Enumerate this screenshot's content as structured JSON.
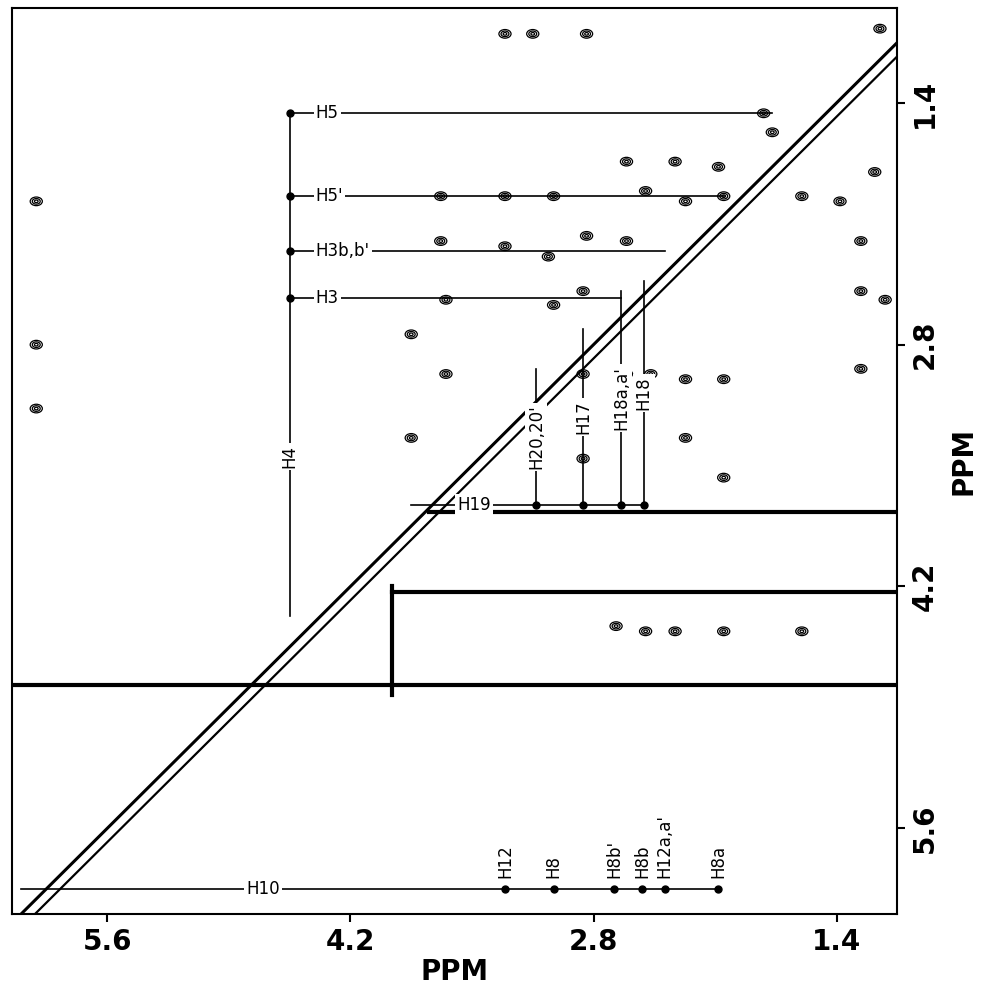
{
  "chart_data": {
    "type": "scatter",
    "x_label": "PPM",
    "y_label": "PPM",
    "xlim": [
      6.15,
      1.05
    ],
    "ylim": [
      6.1,
      0.85
    ],
    "xticks": [
      5.6,
      4.2,
      2.8,
      1.4
    ],
    "yticks": [
      1.4,
      2.8,
      4.2,
      5.6
    ],
    "color": "#000000",
    "cross_peaks": {
      "x": [
        3.31,
        3.15,
        2.84,
        1.15,
        1.82,
        1.77,
        2.08,
        2.61,
        2.33,
        2.5,
        2.27,
        3.68,
        3.31,
        3.03,
        2.05,
        1.6,
        1.38,
        3.68,
        3.31,
        3.06,
        2.84,
        2.61,
        1.26,
        3.65,
        3.03,
        2.86,
        1.26,
        3.85,
        3.65,
        2.86,
        2.61,
        2.47,
        2.27,
        2.05,
        1.26,
        6.01,
        6.01,
        6.01,
        3.85,
        2.27,
        2.05,
        2.86,
        2.67,
        2.5,
        2.33,
        2.05,
        1.6,
        1.18,
        1.12
      ],
      "y": [
        1.0,
        1.0,
        1.0,
        0.97,
        1.46,
        1.57,
        1.77,
        1.74,
        1.74,
        1.91,
        1.97,
        1.94,
        1.94,
        1.94,
        1.94,
        1.94,
        1.97,
        2.2,
        2.23,
        2.29,
        2.17,
        2.2,
        2.2,
        2.54,
        2.57,
        2.49,
        2.49,
        2.74,
        2.97,
        2.97,
        2.97,
        2.97,
        3.0,
        3.0,
        2.94,
        2.8,
        1.97,
        3.17,
        3.34,
        3.34,
        3.57,
        3.46,
        4.43,
        4.46,
        4.46,
        4.46,
        4.46,
        1.8,
        2.54
      ]
    },
    "ridges": [
      {
        "x": [
          6.15,
          1.05
        ],
        "y": [
          4.77,
          4.77
        ]
      },
      {
        "x": [
          3.96,
          3.96
        ],
        "y": [
          4.2,
          4.83
        ]
      },
      {
        "x": [
          3.96,
          1.05
        ],
        "y": [
          4.23,
          4.23
        ]
      },
      {
        "x": [
          3.75,
          1.05
        ],
        "y": [
          3.77,
          3.77
        ]
      }
    ],
    "spin_systems": [
      {
        "name": "H10",
        "orientation": "horizontal",
        "at": 5.95,
        "from": 6.1,
        "to": 2.08,
        "peaks": [
          {
            "label": "H12",
            "pos": 3.31
          },
          {
            "label": "H8",
            "pos": 3.03
          },
          {
            "label": "H8b'",
            "pos": 2.68
          },
          {
            "label": "H8b",
            "pos": 2.52
          },
          {
            "label": "H12a,a'",
            "pos": 2.39
          },
          {
            "label": "H8a",
            "pos": 2.08
          }
        ]
      },
      {
        "name": "H4",
        "orientation": "vertical",
        "at": 4.55,
        "from": 1.46,
        "to": 4.37,
        "peaks": [
          {
            "label": "H5",
            "pos": 1.46,
            "extends_to": 1.77
          },
          {
            "label": "H5'",
            "pos": 1.94,
            "extends_to": 2.05
          },
          {
            "label": "H3b,b'",
            "pos": 2.26,
            "extends_to": 2.39
          },
          {
            "label": "H3",
            "pos": 2.53,
            "extends_to": 2.64
          }
        ]
      },
      {
        "name": "H19",
        "orientation": "horizontal",
        "at": 3.73,
        "from": 3.85,
        "to": 2.51,
        "peaks": [
          {
            "label": "H20,20'",
            "pos": 3.13,
            "extends_to": 2.94
          },
          {
            "label": "H17",
            "pos": 2.86,
            "extends_to": 2.71
          },
          {
            "label": "H18a,a'",
            "pos": 2.64,
            "extends_to": 2.49
          },
          {
            "label": "H18",
            "pos": 2.51,
            "extends_to": 2.43
          }
        ]
      }
    ]
  }
}
